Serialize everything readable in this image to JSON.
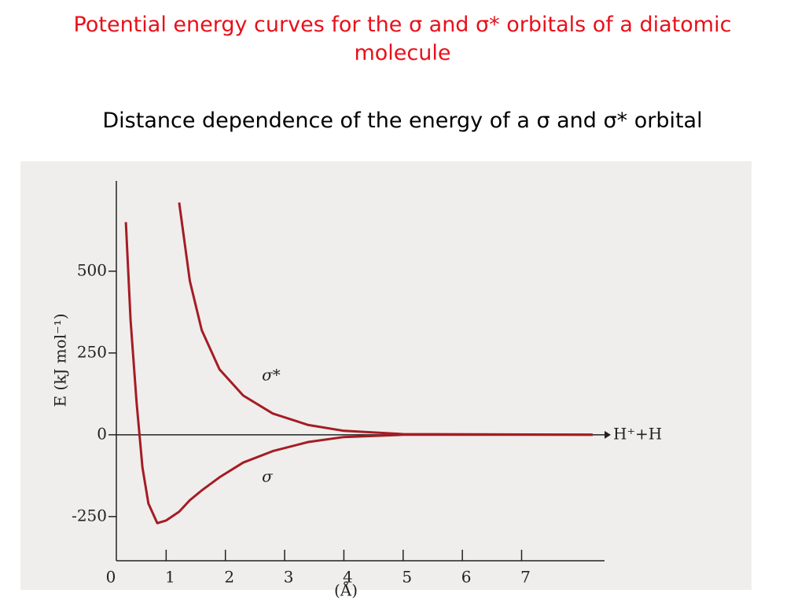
{
  "chart_data": {
    "type": "line",
    "title": "Potential energy curves for the σ and σ* orbitals of a diatomic molecule",
    "subtitle": "Distance dependence of the energy of a σ and σ* orbital",
    "y_label": "E (kJ mol⁻¹)",
    "x_label": "(Å)",
    "annotation": "H⁺+H",
    "x": [
      0.32,
      0.4,
      0.5,
      0.6,
      0.7,
      0.85,
      1.0,
      1.22,
      1.4,
      1.6,
      1.9,
      2.3,
      2.8,
      3.4,
      4.0,
      5.0,
      8.2
    ],
    "series": [
      {
        "name": "σ*",
        "color": "#a51c24",
        "values": [
          null,
          null,
          null,
          null,
          null,
          null,
          null,
          710,
          470,
          320,
          200,
          120,
          65,
          30,
          12,
          2,
          0
        ]
      },
      {
        "name": "σ",
        "color": "#a51c24",
        "values": [
          650,
          350,
          100,
          -100,
          -210,
          -270,
          -262,
          -235,
          -200,
          -170,
          -130,
          -85,
          -50,
          -22,
          -7,
          0,
          0
        ]
      }
    ],
    "xlim": [
      0,
      8.4
    ],
    "ylim": [
      -385,
      776
    ],
    "xticks": [
      0,
      1,
      2,
      3,
      4,
      5,
      6,
      7
    ],
    "yticks": [
      -250,
      0,
      250,
      500
    ]
  }
}
